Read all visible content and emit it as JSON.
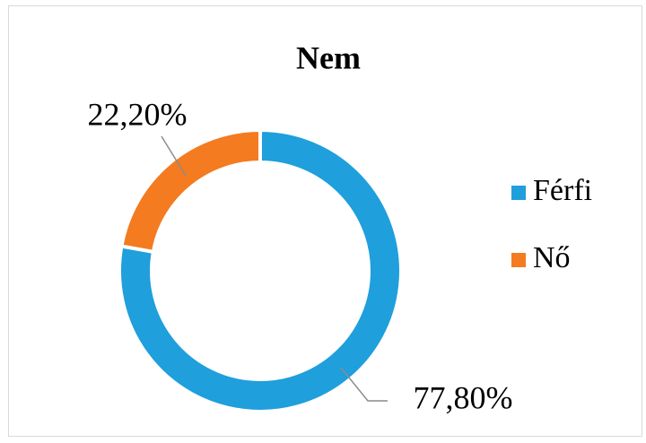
{
  "chart_data": {
    "type": "donut",
    "title": "Nem",
    "categories": [
      "Férfi",
      "Nő"
    ],
    "values": [
      77.8,
      22.2
    ],
    "value_labels": [
      "77,80%",
      "22,20%"
    ],
    "colors": [
      "#1f9fdc",
      "#f47b20"
    ],
    "legend": "right"
  }
}
